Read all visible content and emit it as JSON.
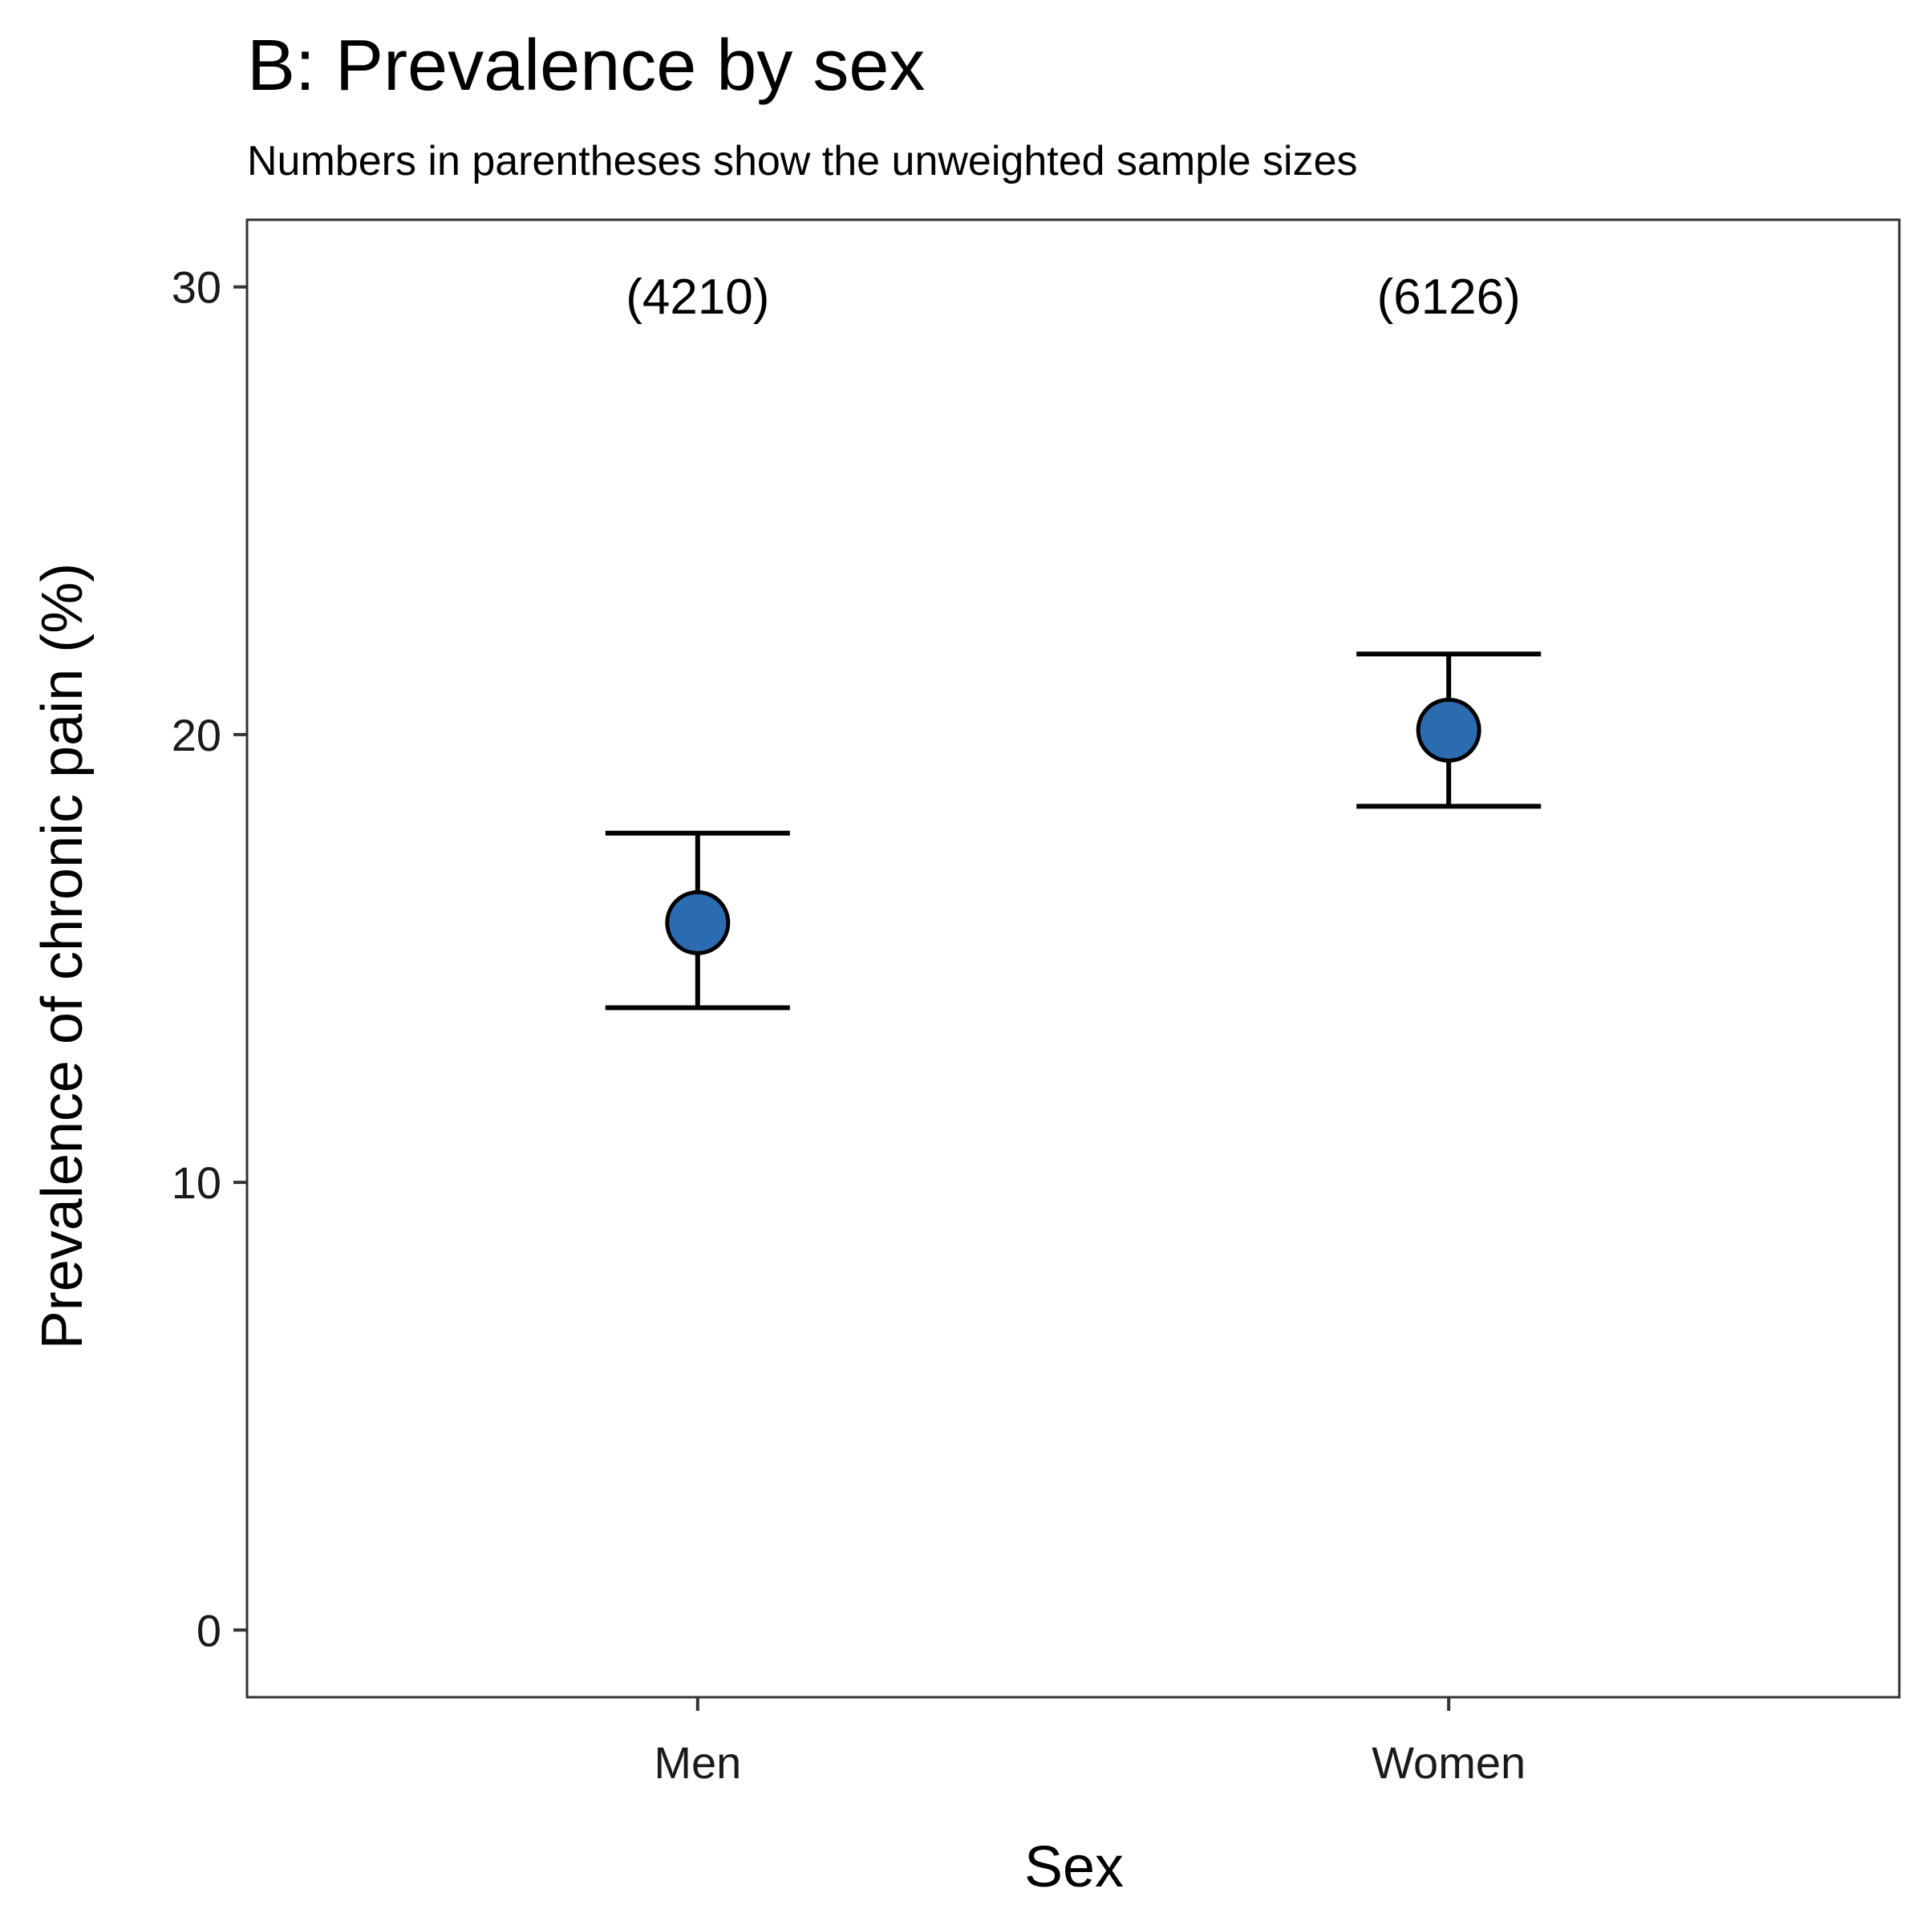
{
  "chart_data": {
    "type": "scatter",
    "title": "B: Prevalence by sex",
    "subtitle": "Numbers in parentheses show the unweighted sample sizes",
    "xlabel": "Sex",
    "ylabel": "Prevalence of chronic pain (%)",
    "categories": [
      "Men",
      "Women"
    ],
    "ylim": [
      -1.5,
      31.5
    ],
    "yticks": [
      "0",
      "10",
      "20",
      "30"
    ],
    "series": [
      {
        "values": [
          15.8,
          20.1
        ],
        "lower": [
          13.9,
          18.4
        ],
        "upper": [
          17.8,
          21.8
        ]
      }
    ],
    "annotations": [
      "(4210)",
      "(6126)"
    ],
    "annotation_y": 29.8,
    "grid": false,
    "legend": "none",
    "point_color": "#2b6cb0",
    "line_color": "#000000"
  }
}
